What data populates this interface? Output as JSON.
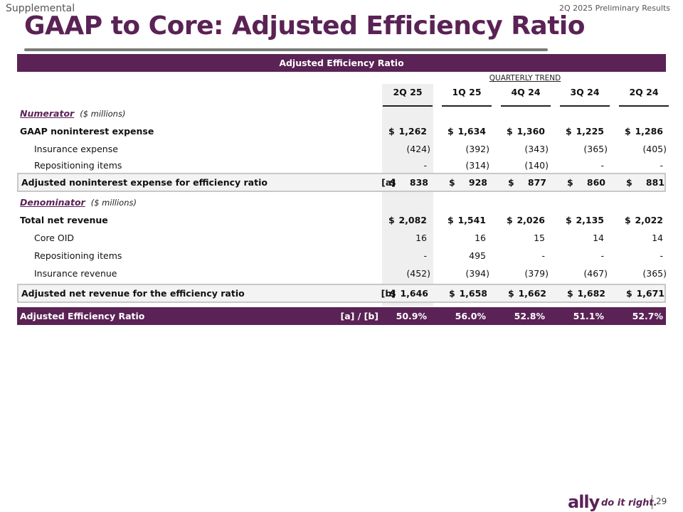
{
  "header": {
    "supplemental": "Supplemental",
    "results": "2Q 2025 Preliminary Results",
    "title": "GAAP to Core: Adjusted Efficiency Ratio"
  },
  "table": {
    "band_title": "Adjusted Efficiency Ratio",
    "trend_label": "QUARTERLY TREND",
    "columns": [
      "2Q 25",
      "1Q 25",
      "4Q 24",
      "3Q 24",
      "2Q 24"
    ],
    "numerator": {
      "label": "Numerator",
      "unit": "($ millions)"
    },
    "denominator": {
      "label": "Denominator",
      "unit": "($ millions)"
    },
    "rows": {
      "gaap_nonint": {
        "label": "GAAP noninterest expense",
        "values": [
          "1,262",
          "1,634",
          "1,360",
          "1,225",
          "1,286"
        ]
      },
      "insurance_exp": {
        "label": "Insurance expense",
        "values": [
          "(424)",
          "(392)",
          "(343)",
          "(365)",
          "(405)"
        ]
      },
      "repositioning_exp": {
        "label": "Repositioning items",
        "values": [
          "-",
          "(314)",
          "(140)",
          "-",
          "-"
        ]
      },
      "adj_nonint": {
        "label": "Adjusted noninterest expense for efficiency ratio",
        "ref": "[a]",
        "values": [
          "838",
          "928",
          "877",
          "860",
          "881"
        ]
      },
      "total_rev": {
        "label": "Total net revenue",
        "values": [
          "2,082",
          "1,541",
          "2,026",
          "2,135",
          "2,022"
        ]
      },
      "core_oid": {
        "label": "Core OID",
        "values": [
          "16",
          "16",
          "15",
          "14",
          "14"
        ]
      },
      "repositioning_rev": {
        "label": "Repositioning items",
        "values": [
          "-",
          "495",
          "-",
          "-",
          "-"
        ]
      },
      "insurance_rev": {
        "label": "Insurance revenue",
        "values": [
          "(452)",
          "(394)",
          "(379)",
          "(467)",
          "(365)"
        ]
      },
      "adj_rev": {
        "label": "Adjusted net revenue for the efficiency ratio",
        "ref": "[b]",
        "values": [
          "1,646",
          "1,658",
          "1,662",
          "1,682",
          "1,671"
        ]
      }
    },
    "ratio": {
      "label": "Adjusted Efficiency Ratio",
      "ref": "[a] / [b]",
      "values": [
        "50.9%",
        "56.0%",
        "52.8%",
        "51.1%",
        "52.7%"
      ]
    },
    "currency_symbol": "$"
  },
  "footer": {
    "logo": "ally",
    "tagline": "do it right.",
    "page_number": "29"
  },
  "colors": {
    "brand": "#5a2255",
    "shade": "#efefef"
  }
}
